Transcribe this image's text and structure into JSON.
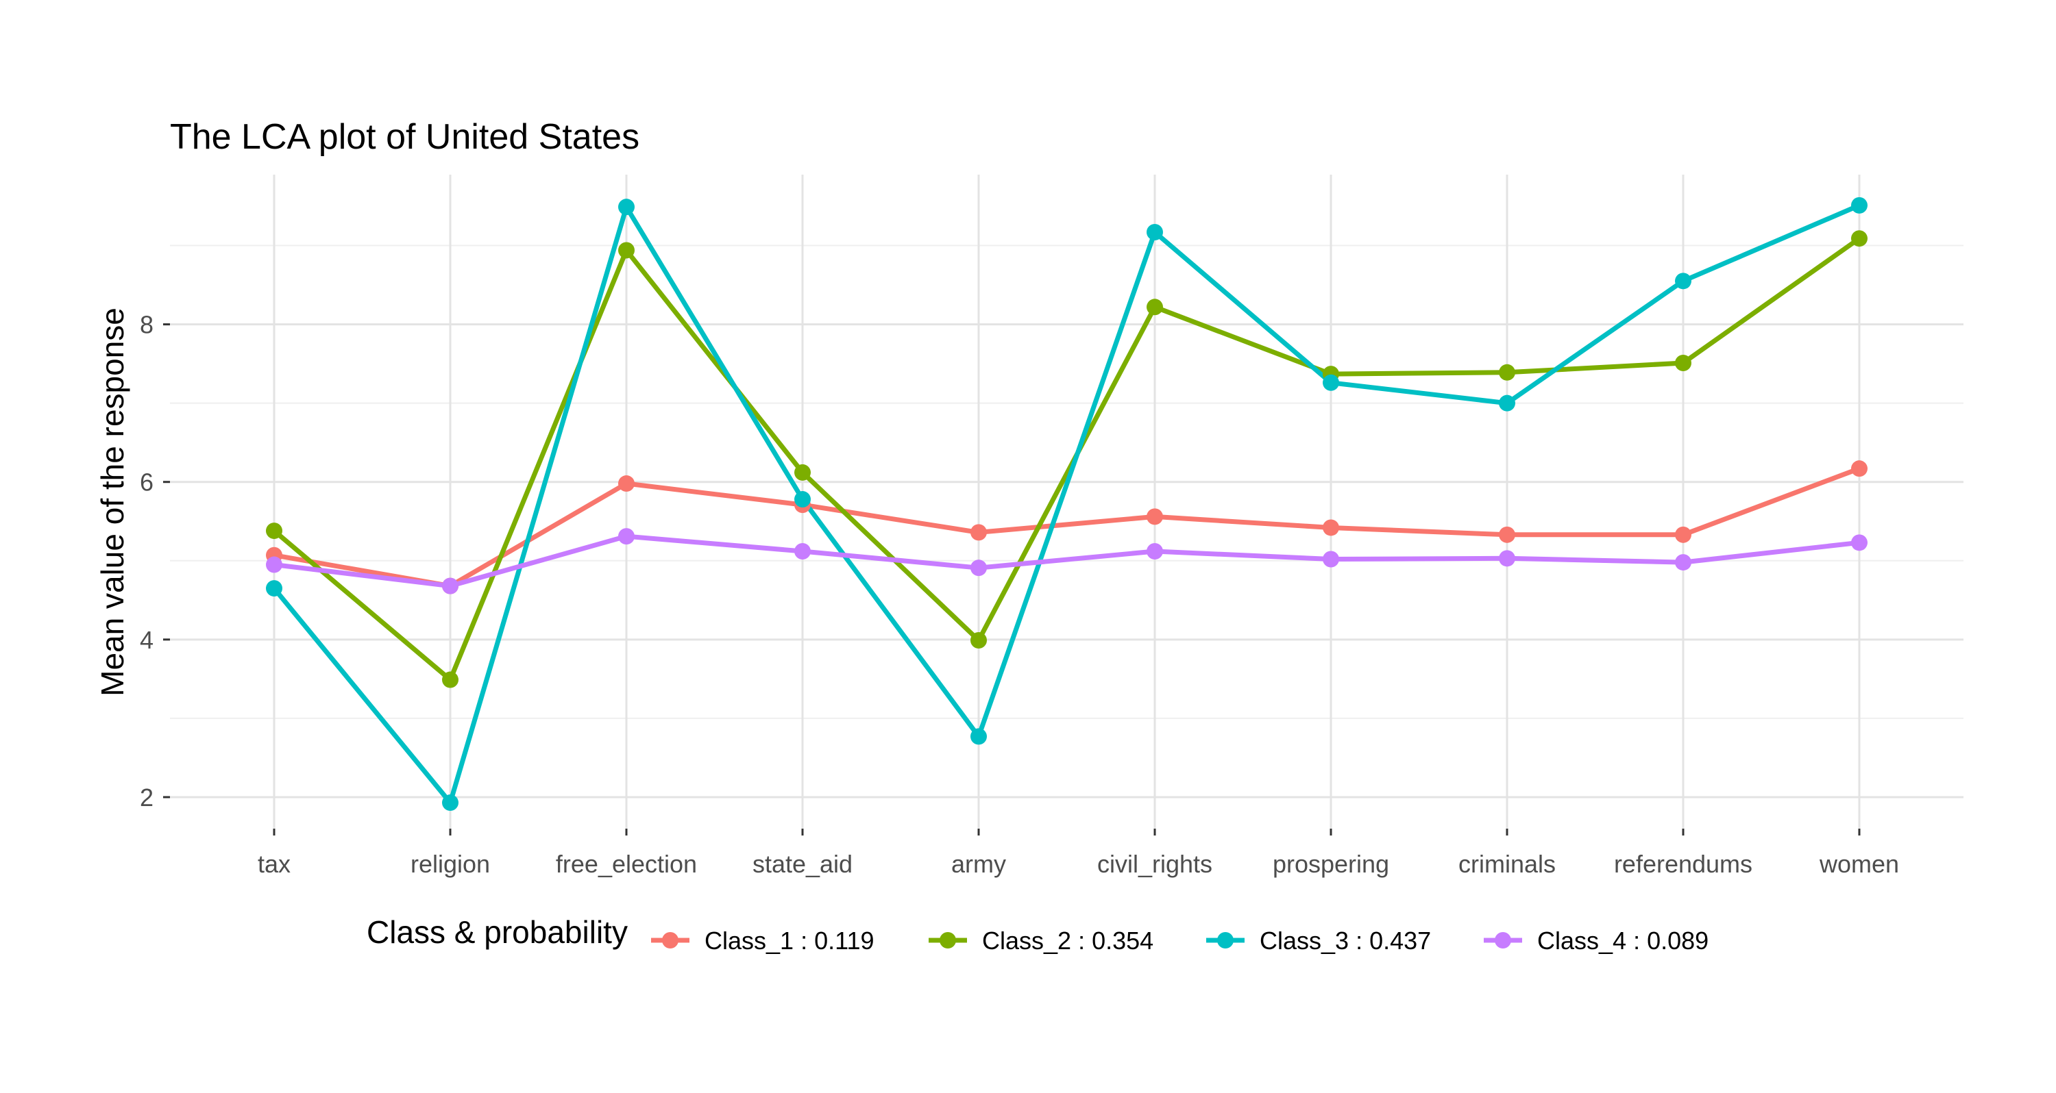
{
  "chart_data": {
    "type": "line",
    "title": "The LCA plot of United States",
    "xlabel": "",
    "ylabel": "Mean value of the response",
    "categories": [
      "tax",
      "religion",
      "free_election",
      "state_aid",
      "army",
      "civil_rights",
      "prospering",
      "criminals",
      "referendums",
      "women"
    ],
    "ylim": [
      1.6,
      9.9
    ],
    "yticks": [
      "2",
      "4",
      "6",
      "8"
    ],
    "grid": true,
    "legend": {
      "title": "Class & probability",
      "position": "bottom"
    },
    "series": [
      {
        "name": "Class_1 : 0.119",
        "color": "#F8766D",
        "values": [
          5.07,
          4.68,
          5.98,
          5.71,
          5.36,
          5.56,
          5.42,
          5.33,
          5.33,
          6.17
        ]
      },
      {
        "name": "Class_2 : 0.354",
        "color": "#7CAE00",
        "values": [
          5.38,
          3.49,
          8.94,
          6.12,
          3.99,
          8.22,
          7.37,
          7.39,
          7.51,
          9.09
        ]
      },
      {
        "name": "Class_3 : 0.437",
        "color": "#00BFC4",
        "values": [
          4.65,
          1.93,
          9.49,
          5.78,
          2.77,
          9.17,
          7.26,
          7.0,
          8.55,
          9.51
        ]
      },
      {
        "name": "Class_4 : 0.089",
        "color": "#C77CFF",
        "values": [
          4.95,
          4.68,
          5.31,
          5.12,
          4.91,
          5.12,
          5.02,
          5.03,
          4.98,
          5.23
        ]
      }
    ]
  }
}
